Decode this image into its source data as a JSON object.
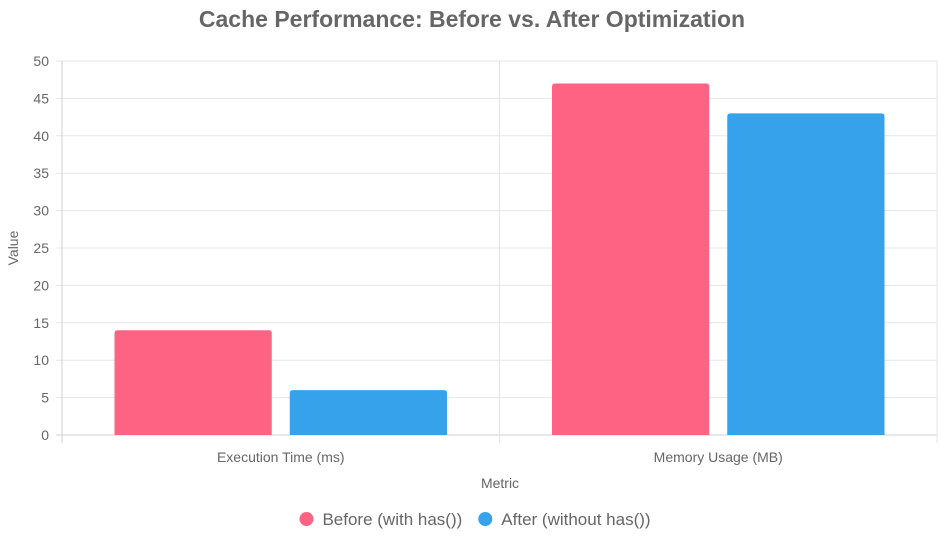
{
  "chart_data": {
    "type": "bar",
    "title": "Cache Performance: Before vs. After Optimization",
    "xlabel": "Metric",
    "ylabel": "Value",
    "categories": [
      "Execution Time (ms)",
      "Memory Usage (MB)"
    ],
    "ylim": [
      0,
      50
    ],
    "yticks": [
      0,
      5,
      10,
      15,
      20,
      25,
      30,
      35,
      40,
      45,
      50
    ],
    "grid": true,
    "legend_position": "bottom",
    "series": [
      {
        "name": "Before (with has())",
        "values": [
          14,
          47
        ],
        "color": "#ff6384"
      },
      {
        "name": "After (without has())",
        "values": [
          6,
          43
        ],
        "color": "#36a2eb"
      }
    ]
  }
}
